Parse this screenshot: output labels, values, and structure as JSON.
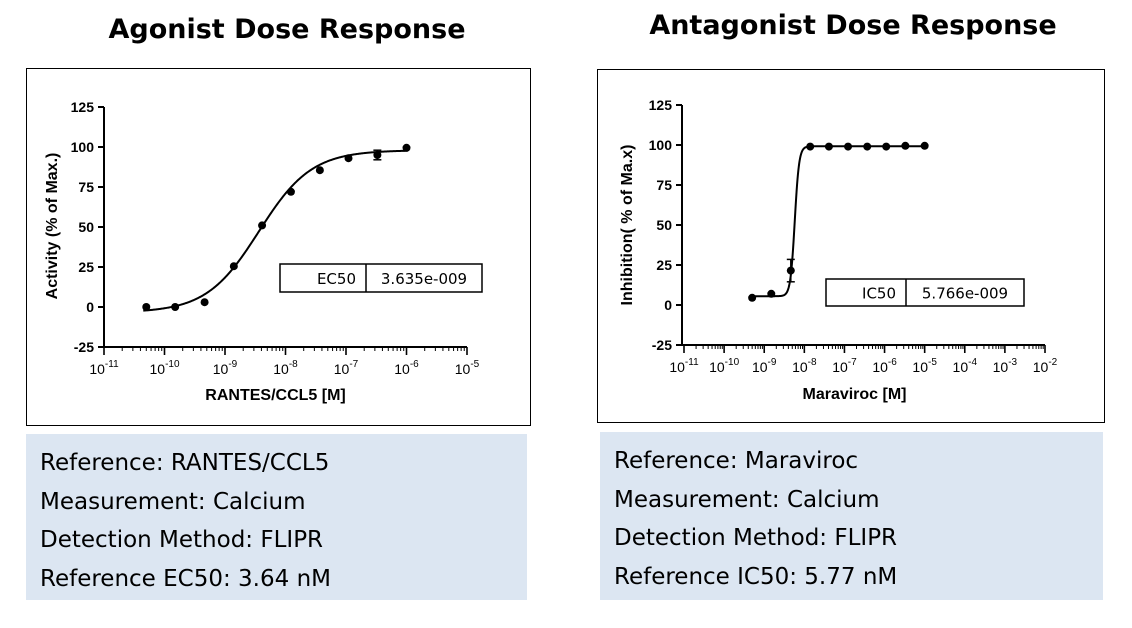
{
  "chart_data": [
    {
      "type": "scatter",
      "title": "Agonist Dose Response",
      "xlabel": "RANTES/CCL5 [M]",
      "ylabel": "Activity (% of Max.)",
      "x_scale": "log",
      "xlim": [
        1e-11,
        1e-05
      ],
      "ylim": [
        -25,
        125
      ],
      "x_ticks": [
        {
          "base": "10",
          "exp": "-11"
        },
        {
          "base": "10",
          "exp": "-10"
        },
        {
          "base": "10",
          "exp": "-9"
        },
        {
          "base": "10",
          "exp": "-8"
        },
        {
          "base": "10",
          "exp": "-7"
        },
        {
          "base": "10",
          "exp": "-6"
        },
        {
          "base": "10",
          "exp": "-5"
        }
      ],
      "y_ticks": [
        "-25",
        "0",
        "25",
        "50",
        "75",
        "100",
        "125"
      ],
      "x": [
        5e-11,
        1.5e-10,
        4.6e-10,
        1.4e-09,
        4.1e-09,
        1.23e-08,
        3.7e-08,
        1.1e-07,
        3.3e-07,
        1e-06
      ],
      "y": [
        0,
        0,
        3,
        25.5,
        51,
        72,
        85.5,
        93,
        95,
        99.5
      ],
      "error": [
        0,
        0,
        0,
        0,
        0,
        0,
        0,
        0,
        3,
        0
      ],
      "fit": {
        "model": "4PL",
        "bottom": -3.5,
        "top": 98,
        "log_ec50": -8.4395,
        "hill": 1.0
      },
      "annotation": {
        "label": "EC50",
        "value": "3.635e-009"
      },
      "grid": false,
      "legend": "none"
    },
    {
      "type": "scatter",
      "title": "Antagonist Dose Response",
      "xlabel": "Maraviroc [M]",
      "ylabel": "Inhibition( % of Ma.x)",
      "x_scale": "log",
      "xlim": [
        1e-11,
        0.01
      ],
      "ylim": [
        -25,
        125
      ],
      "x_ticks": [
        {
          "base": "10",
          "exp": "-11"
        },
        {
          "base": "10",
          "exp": "-10"
        },
        {
          "base": "10",
          "exp": "-9"
        },
        {
          "base": "10",
          "exp": "-8"
        },
        {
          "base": "10",
          "exp": "-7"
        },
        {
          "base": "10",
          "exp": "-6"
        },
        {
          "base": "10",
          "exp": "-5"
        },
        {
          "base": "10",
          "exp": "-4"
        },
        {
          "base": "10",
          "exp": "-3"
        },
        {
          "base": "10",
          "exp": "-2"
        }
      ],
      "y_ticks": [
        "-25",
        "0",
        "25",
        "50",
        "75",
        "100",
        "125"
      ],
      "x": [
        5e-10,
        1.5e-09,
        4.6e-09,
        1.4e-08,
        4.1e-08,
        1.23e-07,
        3.7e-07,
        1.1e-06,
        3.3e-06,
        1e-05
      ],
      "y": [
        4.5,
        7,
        21.5,
        99,
        99,
        99,
        99,
        99,
        99.5,
        99.5
      ],
      "error": [
        0,
        0,
        7,
        0,
        0,
        0,
        0,
        0,
        0,
        0
      ],
      "fit": {
        "model": "4PL",
        "bottom": 5.5,
        "top": 99.2,
        "log_ec50": -8.2391,
        "hill": 8.0
      },
      "annotation": {
        "label": "IC50",
        "value": "5.766e-009"
      },
      "grid": false,
      "legend": "none"
    }
  ],
  "info_left": {
    "line1": "Reference: RANTES/CCL5",
    "line2": "Measurement: Calcium",
    "line3": "Detection Method: FLIPR",
    "line4": "Reference EC50: 3.64 nM"
  },
  "info_right": {
    "line1": "Reference: Maraviroc",
    "line2": "Measurement: Calcium",
    "line3": "Detection Method: FLIPR",
    "line4": "Reference IC50: 5.77 nM"
  },
  "colors": {
    "info_bg": "#dce6f2",
    "ink": "#000000"
  }
}
